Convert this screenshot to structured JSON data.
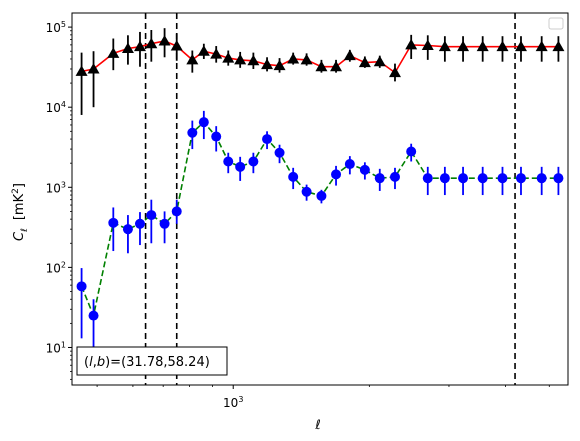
{
  "chart_data": {
    "type": "scatter",
    "xscale": "log",
    "yscale": "log",
    "xlim": [
      440,
      5500
    ],
    "ylim": [
      3.4,
      150000
    ],
    "xlabel": "ℓ",
    "ylabel_main": "C",
    "ylabel_sub": "ℓ",
    "ylabel_unit": "[mK",
    "ylabel_unit_sup": "2",
    "ylabel_unit_end": "]",
    "xticks": [
      {
        "value": 1000,
        "base": "10",
        "exp": "3"
      }
    ],
    "yticks": [
      {
        "value": 10,
        "base": "10",
        "exp": "1"
      },
      {
        "value": 100,
        "base": "10",
        "exp": "2"
      },
      {
        "value": 1000,
        "base": "10",
        "exp": "3"
      },
      {
        "value": 10000,
        "base": "10",
        "exp": "4"
      },
      {
        "value": 100000,
        "base": "10",
        "exp": "5"
      }
    ],
    "grid": false,
    "legend_placement": "top-right",
    "annotation": {
      "prefix": "(",
      "var1": "l",
      "sep": ",",
      "var2": "b",
      "suffix": ")=(31.78,58.24)"
    },
    "vlines": [
      640,
      750,
      4200
    ],
    "series": [
      {
        "color": "#ff0000",
        "marker": "triangle",
        "marker_color": "#000000",
        "err_color": "#000000",
        "line": "solid",
        "x": [
          462,
          491,
          543,
          585,
          622,
          659,
          705,
          750,
          812,
          861,
          917,
          975,
          1036,
          1108,
          1188,
          1266,
          1357,
          1453,
          1567,
          1688,
          1811,
          1955,
          2109,
          2279,
          2475,
          2693,
          2938,
          3223,
          3562,
          3940,
          4329,
          4810,
          5238
        ],
        "y": [
          28000,
          30000,
          47000,
          54000,
          57000,
          62000,
          67000,
          58000,
          39000,
          50000,
          46000,
          41000,
          39000,
          38000,
          34000,
          33000,
          40000,
          39000,
          32000,
          32000,
          44000,
          36000,
          37000,
          27000,
          60000,
          59000,
          57000,
          57000,
          57000,
          57000,
          57000,
          57000,
          57000
        ],
        "yerr_low": [
          20000,
          20000,
          18000,
          20000,
          25000,
          25000,
          25000,
          20000,
          12000,
          10000,
          10000,
          8000,
          8000,
          8000,
          6000,
          6000,
          6000,
          6000,
          5000,
          5000,
          7000,
          5000,
          6000,
          6000,
          20000,
          20000,
          20000,
          20000,
          20000,
          20000,
          20000,
          20000,
          20000
        ],
        "yerr_high": [
          20000,
          20000,
          25000,
          25000,
          30000,
          30000,
          30000,
          25000,
          12000,
          12000,
          12000,
          10000,
          10000,
          10000,
          8000,
          8000,
          8000,
          8000,
          7000,
          7000,
          8000,
          7000,
          7000,
          8000,
          20000,
          20000,
          20000,
          20000,
          20000,
          20000,
          20000,
          20000,
          20000
        ]
      },
      {
        "color": "#008000",
        "marker": "circle",
        "marker_color": "#0000ff",
        "err_color": "#0000ff",
        "line": "dashed",
        "x": [
          462,
          491,
          543,
          585,
          622,
          659,
          705,
          750,
          812,
          861,
          917,
          975,
          1036,
          1108,
          1188,
          1266,
          1357,
          1453,
          1567,
          1688,
          1811,
          1955,
          2109,
          2279,
          2475,
          2693,
          2938,
          3223,
          3562,
          3940,
          4329,
          4810,
          5238
        ],
        "y": [
          58,
          25,
          360,
          300,
          350,
          450,
          350,
          500,
          4800,
          6500,
          4300,
          2100,
          1800,
          2100,
          4000,
          2700,
          1350,
          880,
          780,
          1450,
          1950,
          1650,
          1300,
          1350,
          2800,
          1300,
          1300,
          1300,
          1300,
          1300,
          1300,
          1300,
          1300
        ],
        "yerr_low": [
          45,
          20,
          200,
          150,
          160,
          250,
          150,
          150,
          1800,
          2500,
          1500,
          600,
          600,
          600,
          1000,
          700,
          400,
          200,
          150,
          400,
          500,
          400,
          400,
          400,
          700,
          500,
          500,
          500,
          500,
          500,
          500,
          500,
          500
        ],
        "yerr_high": [
          40,
          15,
          200,
          150,
          140,
          250,
          150,
          200,
          2000,
          2500,
          1500,
          600,
          600,
          600,
          1000,
          700,
          400,
          200,
          150,
          400,
          500,
          400,
          400,
          400,
          700,
          500,
          500,
          500,
          500,
          500,
          500,
          500,
          500
        ]
      }
    ]
  }
}
